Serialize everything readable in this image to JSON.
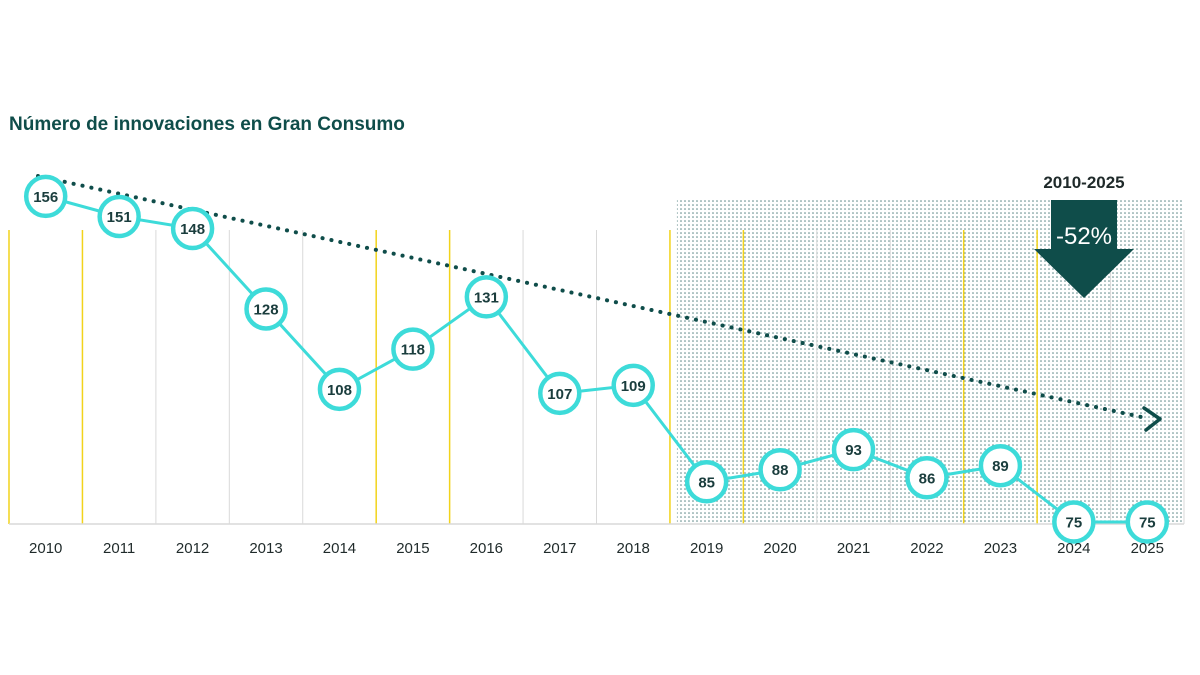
{
  "colors": {
    "title": "#0f4d4a",
    "line": "#3ddbd9",
    "marker_fill": "#ffffff",
    "trend": "#0f4d4a",
    "highlight_gridline": "#f2d31b",
    "gridline": "#d9d9d9",
    "shaded_region": "#5a8585",
    "arrow": "#0f4d4a"
  },
  "chart_data": {
    "type": "line",
    "title": "Número de innovaciones en Gran Consumo",
    "xlabel": "",
    "ylabel": "",
    "categories": [
      "2010",
      "2011",
      "2012",
      "2013",
      "2014",
      "2015",
      "2016",
      "2017",
      "2018",
      "2019",
      "2020",
      "2021",
      "2022",
      "2023",
      "2024",
      "2025"
    ],
    "series": [
      {
        "values": [
          156,
          151,
          148,
          128,
          108,
          118,
          131,
          107,
          109,
          85,
          88,
          93,
          86,
          89,
          75,
          75
        ]
      }
    ],
    "ylim": [
      40,
      175
    ],
    "grid": true,
    "highlighted_gridlines_after": [
      "2010",
      "2014",
      "2015",
      "2018",
      "2019",
      "2022",
      "2023"
    ],
    "shaded_period": [
      "2019",
      "2025"
    ],
    "trend_line": {
      "style": "dotted",
      "direction": "decreasing",
      "from": "2010",
      "to": "2025"
    },
    "callout": {
      "period": "2010-2025",
      "change": "-52%",
      "symbol": "down-arrow"
    }
  }
}
